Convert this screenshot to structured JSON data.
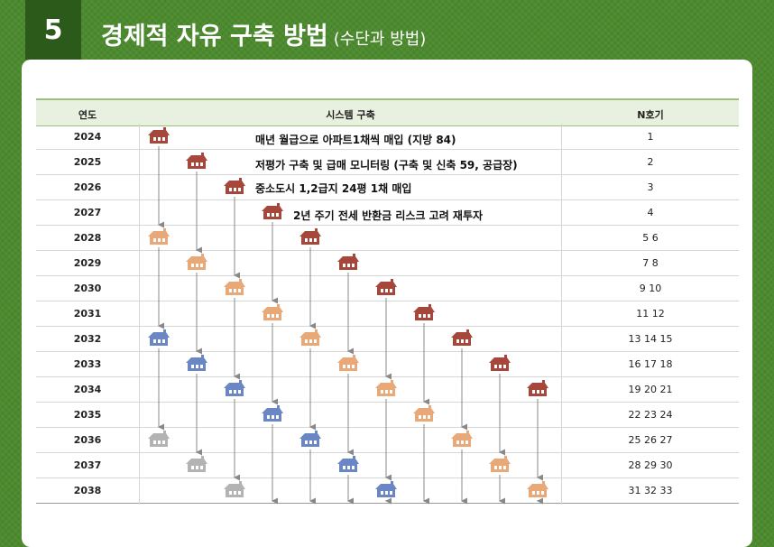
{
  "header": {
    "number": "5",
    "title": "경제적 자유 구축 방법",
    "subtitle": "(수단과 방법)"
  },
  "table": {
    "columns": [
      "연도",
      "시스템 구축",
      "N호기"
    ],
    "years": [
      "2024",
      "2025",
      "2026",
      "2027",
      "2028",
      "2029",
      "2030",
      "2031",
      "2032",
      "2033",
      "2034",
      "2035",
      "2036",
      "2037",
      "2038"
    ],
    "n_units": [
      "1",
      "2",
      "3",
      "4",
      "5 6",
      "7 8",
      "9 10",
      "11 12",
      "13 14 15",
      "16 17 18",
      "19 20 21",
      "22 23 24",
      "25 26 27",
      "28 29 30",
      "31 32 33"
    ],
    "annotations": [
      "매년 월급으로 아파트1채씩 매입 (지방 84)",
      "저평가 구축 및 급매 모니터링 (구축 및 신축 59, 공급장)",
      "중소도시 1,2급지 24평 1채 매입",
      "2년 주기 전세 반환금 리스크 고려 재투자"
    ]
  },
  "house_colors": {
    "new": "#a5473a",
    "second": "#e8a878",
    "third": "#6b86c4",
    "fourth": "#b3b3b3"
  },
  "chains_start_year_index": [
    0,
    1,
    2,
    3,
    4,
    5,
    6,
    7,
    8,
    9,
    10
  ]
}
